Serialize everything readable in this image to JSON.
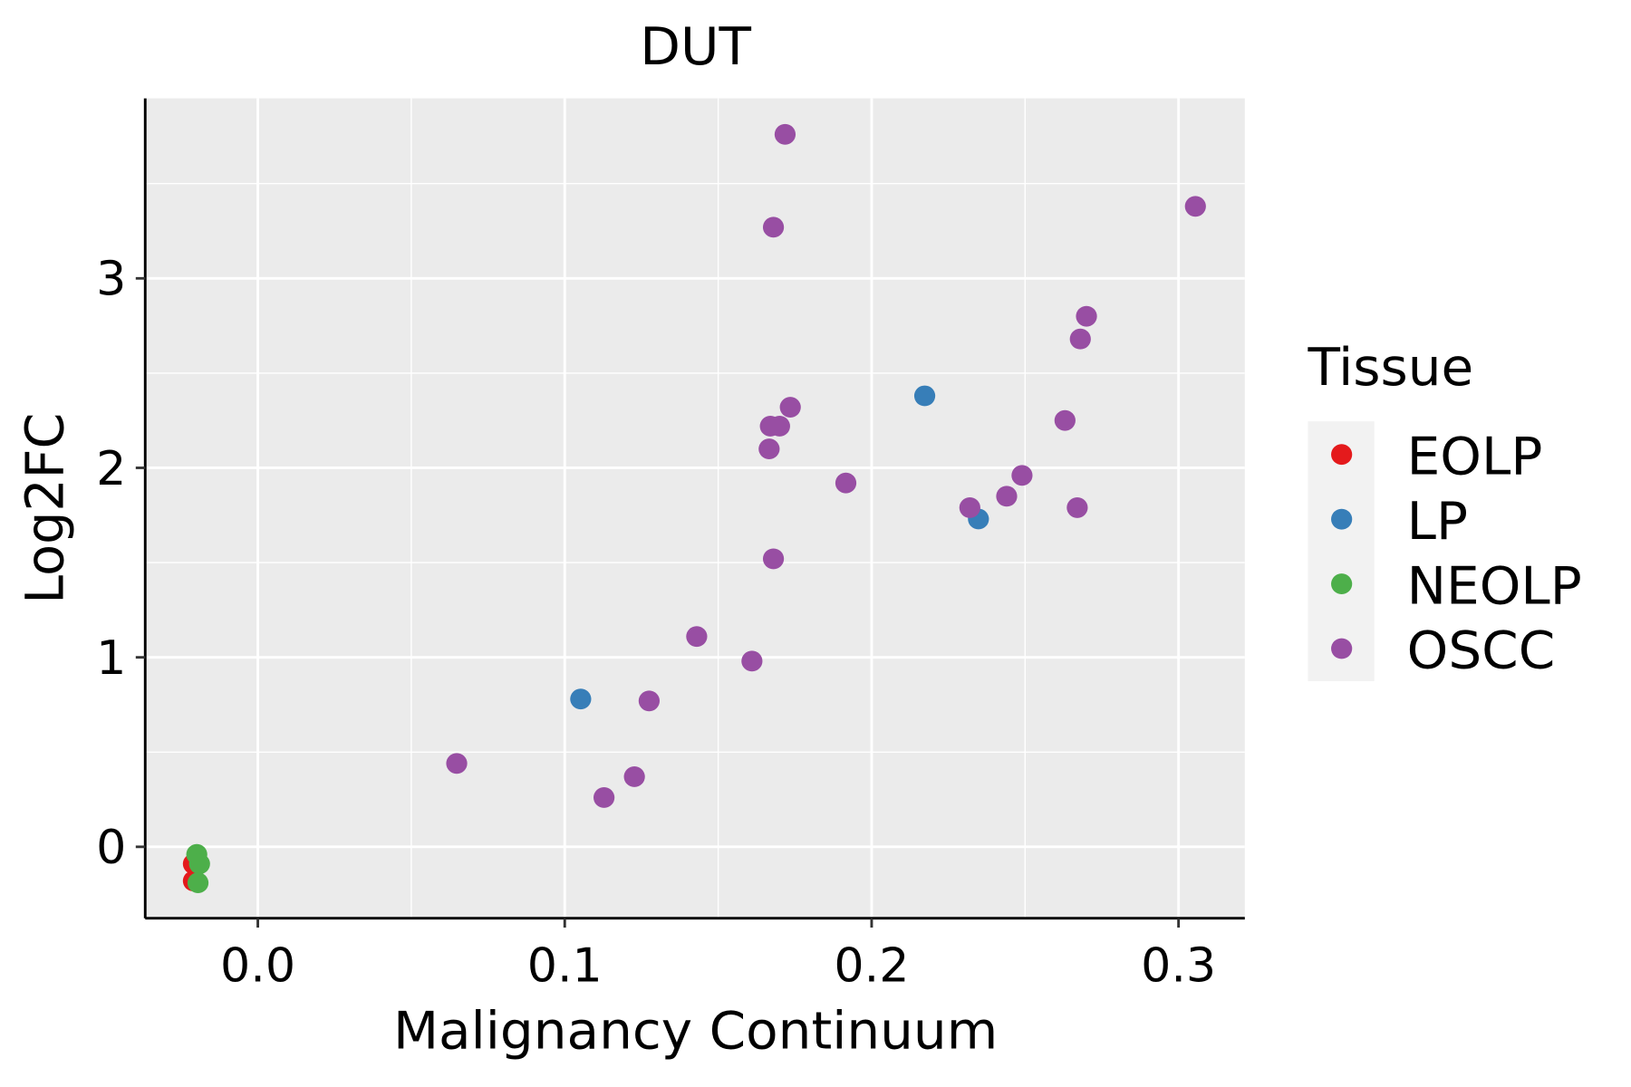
{
  "chart_data": {
    "type": "scatter",
    "title": "DUT",
    "xlabel": "Malignancy Continuum",
    "ylabel": "Log2FC",
    "xlim": [
      -0.0367,
      0.3216
    ],
    "ylim": [
      -0.377,
      3.95
    ],
    "xticks": [
      0.0,
      0.1,
      0.2,
      0.3
    ],
    "xtick_labels": [
      "0.0",
      "0.1",
      "0.2",
      "0.3"
    ],
    "yticks": [
      0,
      1,
      2,
      3
    ],
    "ytick_labels": [
      "0",
      "1",
      "2",
      "3"
    ],
    "grid": true,
    "legend": {
      "title": "Tissue",
      "position": "right"
    },
    "series": [
      {
        "name": "EOLP",
        "color": "#E41A1C",
        "points": [
          [
            -0.021,
            -0.09
          ],
          [
            -0.021,
            -0.18
          ]
        ]
      },
      {
        "name": "LP",
        "color": "#377EB8",
        "points": [
          [
            0.2173,
            2.38
          ],
          [
            0.2348,
            1.73
          ],
          [
            0.1052,
            0.78
          ]
        ]
      },
      {
        "name": "NEOLP",
        "color": "#4DAF4A",
        "points": [
          [
            -0.0199,
            -0.04
          ],
          [
            -0.019,
            -0.09
          ],
          [
            -0.0195,
            -0.19
          ]
        ]
      },
      {
        "name": "OSCC",
        "color": "#984EA3",
        "points": [
          [
            0.1718,
            3.76
          ],
          [
            0.168,
            3.27
          ],
          [
            0.3055,
            3.38
          ],
          [
            0.27,
            2.8
          ],
          [
            0.268,
            2.68
          ],
          [
            0.263,
            2.25
          ],
          [
            0.1735,
            2.32
          ],
          [
            0.167,
            2.22
          ],
          [
            0.17,
            2.22
          ],
          [
            0.1666,
            2.1
          ],
          [
            0.1916,
            1.92
          ],
          [
            0.249,
            1.96
          ],
          [
            0.244,
            1.85
          ],
          [
            0.232,
            1.79
          ],
          [
            0.267,
            1.79
          ],
          [
            0.168,
            1.52
          ],
          [
            0.143,
            1.11
          ],
          [
            0.161,
            0.98
          ],
          [
            0.1275,
            0.77
          ],
          [
            0.0648,
            0.44
          ],
          [
            0.1227,
            0.37
          ],
          [
            0.1128,
            0.26
          ]
        ]
      }
    ]
  }
}
